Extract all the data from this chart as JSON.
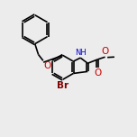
{
  "bg_color": "#ececec",
  "bond_color": "#000000",
  "bond_lw": 1.2,
  "font_size": 6.5,
  "atom_colors": {
    "N": "#0000cc",
    "O": "#cc0000",
    "Br": "#800000"
  },
  "fig_size": [
    1.52,
    1.52
  ],
  "dpi": 100,
  "xlim": [
    0,
    10
  ],
  "ylim": [
    0,
    10
  ]
}
